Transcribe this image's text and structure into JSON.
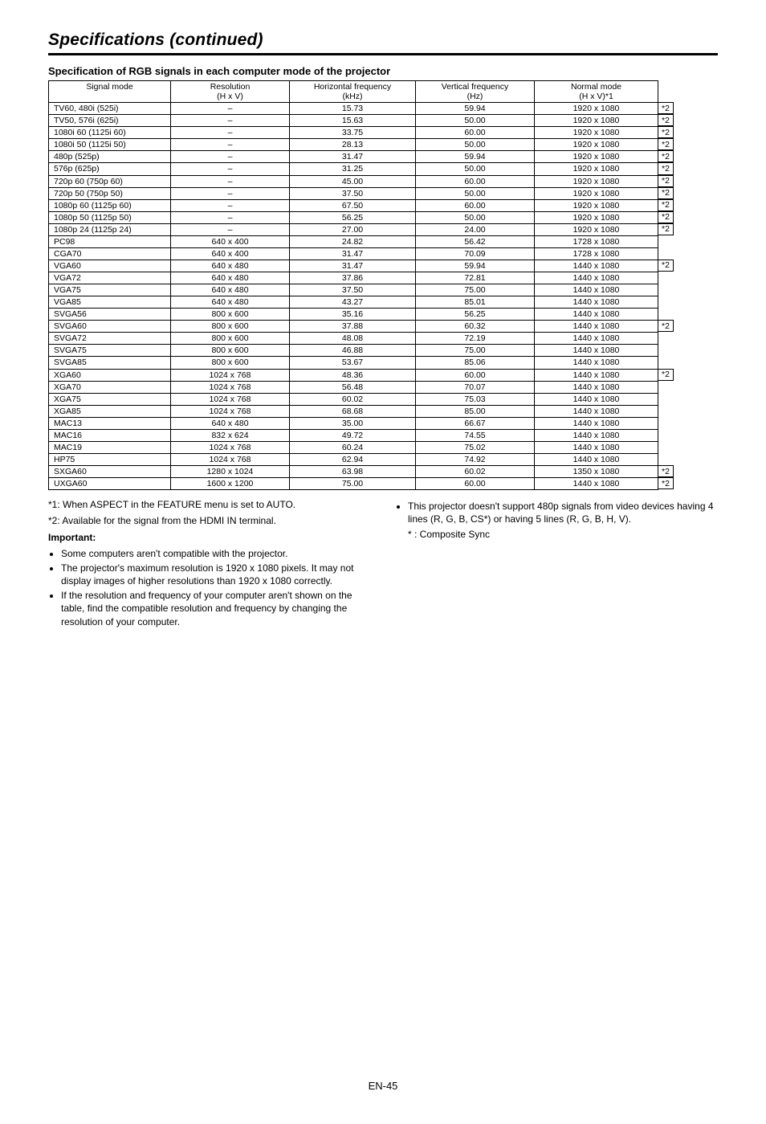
{
  "page": {
    "title": "Specifications (continued)",
    "section_heading": "Specification of RGB signals in each computer mode of the projector",
    "page_number": "EN-45"
  },
  "table": {
    "columns": [
      {
        "line1": "Signal mode",
        "line2": ""
      },
      {
        "line1": "Resolution",
        "line2": "(H x V)"
      },
      {
        "line1": "Horizontal frequency",
        "line2": "(kHz)"
      },
      {
        "line1": "Vertical frequency",
        "line2": "(Hz)"
      },
      {
        "line1": "Normal mode",
        "line2": "(H x V)*1"
      }
    ],
    "rows": [
      {
        "signal": "TV60, 480i (525i)",
        "res": "–",
        "hf": "15.73",
        "vf": "59.94",
        "nm": "1920 x 1080",
        "note": "*2"
      },
      {
        "signal": "TV50, 576i (625i)",
        "res": "–",
        "hf": "15.63",
        "vf": "50.00",
        "nm": "1920 x 1080",
        "note": "*2"
      },
      {
        "signal": "1080i 60 (1125i 60)",
        "res": "–",
        "hf": "33.75",
        "vf": "60.00",
        "nm": "1920 x 1080",
        "note": "*2"
      },
      {
        "signal": "1080i 50 (1125i 50)",
        "res": "–",
        "hf": "28.13",
        "vf": "50.00",
        "nm": "1920 x 1080",
        "note": "*2"
      },
      {
        "signal": "480p (525p)",
        "res": "–",
        "hf": "31.47",
        "vf": "59.94",
        "nm": "1920 x 1080",
        "note": "*2"
      },
      {
        "signal": "576p (625p)",
        "res": "–",
        "hf": "31.25",
        "vf": "50.00",
        "nm": "1920 x 1080",
        "note": "*2"
      },
      {
        "signal": "720p 60 (750p 60)",
        "res": "–",
        "hf": "45.00",
        "vf": "60.00",
        "nm": "1920 x 1080",
        "note": "*2"
      },
      {
        "signal": "720p 50 (750p 50)",
        "res": "–",
        "hf": "37.50",
        "vf": "50.00",
        "nm": "1920 x 1080",
        "note": "*2"
      },
      {
        "signal": "1080p 60 (1125p 60)",
        "res": "–",
        "hf": "67.50",
        "vf": "60.00",
        "nm": "1920 x 1080",
        "note": "*2"
      },
      {
        "signal": "1080p 50 (1125p 50)",
        "res": "–",
        "hf": "56.25",
        "vf": "50.00",
        "nm": "1920 x 1080",
        "note": "*2"
      },
      {
        "signal": "1080p 24 (1125p 24)",
        "res": "–",
        "hf": "27.00",
        "vf": "24.00",
        "nm": "1920 x 1080",
        "note": "*2"
      },
      {
        "signal": "PC98",
        "res": "640 x 400",
        "hf": "24.82",
        "vf": "56.42",
        "nm": "1728 x 1080",
        "note": ""
      },
      {
        "signal": "CGA70",
        "res": "640 x 400",
        "hf": "31.47",
        "vf": "70.09",
        "nm": "1728 x 1080",
        "note": ""
      },
      {
        "signal": "VGA60",
        "res": "640 x 480",
        "hf": "31.47",
        "vf": "59.94",
        "nm": "1440 x 1080",
        "note": "*2"
      },
      {
        "signal": "VGA72",
        "res": "640 x 480",
        "hf": "37.86",
        "vf": "72.81",
        "nm": "1440 x 1080",
        "note": ""
      },
      {
        "signal": "VGA75",
        "res": "640 x 480",
        "hf": "37.50",
        "vf": "75.00",
        "nm": "1440 x 1080",
        "note": ""
      },
      {
        "signal": "VGA85",
        "res": "640 x 480",
        "hf": "43.27",
        "vf": "85.01",
        "nm": "1440 x 1080",
        "note": ""
      },
      {
        "signal": "SVGA56",
        "res": "800 x 600",
        "hf": "35.16",
        "vf": "56.25",
        "nm": "1440 x 1080",
        "note": ""
      },
      {
        "signal": "SVGA60",
        "res": "800 x 600",
        "hf": "37.88",
        "vf": "60.32",
        "nm": "1440 x 1080",
        "note": "*2"
      },
      {
        "signal": "SVGA72",
        "res": "800 x 600",
        "hf": "48.08",
        "vf": "72.19",
        "nm": "1440 x 1080",
        "note": ""
      },
      {
        "signal": "SVGA75",
        "res": "800 x 600",
        "hf": "46.88",
        "vf": "75.00",
        "nm": "1440 x 1080",
        "note": ""
      },
      {
        "signal": "SVGA85",
        "res": "800 x 600",
        "hf": "53.67",
        "vf": "85.06",
        "nm": "1440 x 1080",
        "note": ""
      },
      {
        "signal": "XGA60",
        "res": "1024 x 768",
        "hf": "48.36",
        "vf": "60.00",
        "nm": "1440 x 1080",
        "note": "*2"
      },
      {
        "signal": "XGA70",
        "res": "1024 x 768",
        "hf": "56.48",
        "vf": "70.07",
        "nm": "1440 x 1080",
        "note": ""
      },
      {
        "signal": "XGA75",
        "res": "1024 x 768",
        "hf": "60.02",
        "vf": "75.03",
        "nm": "1440 x 1080",
        "note": ""
      },
      {
        "signal": "XGA85",
        "res": "1024 x 768",
        "hf": "68.68",
        "vf": "85.00",
        "nm": "1440 x 1080",
        "note": ""
      },
      {
        "signal": "MAC13",
        "res": "640 x 480",
        "hf": "35.00",
        "vf": "66.67",
        "nm": "1440 x 1080",
        "note": ""
      },
      {
        "signal": "MAC16",
        "res": "832 x 624",
        "hf": "49.72",
        "vf": "74.55",
        "nm": "1440 x 1080",
        "note": ""
      },
      {
        "signal": "MAC19",
        "res": "1024 x 768",
        "hf": "60.24",
        "vf": "75.02",
        "nm": "1440 x 1080",
        "note": ""
      },
      {
        "signal": "HP75",
        "res": "1024 x 768",
        "hf": "62.94",
        "vf": "74.92",
        "nm": "1440 x 1080",
        "note": ""
      },
      {
        "signal": "SXGA60",
        "res": "1280 x 1024",
        "hf": "63.98",
        "vf": "60.02",
        "nm": "1350 x 1080",
        "note": "*2"
      },
      {
        "signal": "UXGA60",
        "res": "1600 x 1200",
        "hf": "75.00",
        "vf": "60.00",
        "nm": "1440 x 1080",
        "note": "*2"
      }
    ]
  },
  "footnotes": {
    "f1": "*1: When ASPECT in the FEATURE menu is set to AUTO.",
    "f2": "*2: Available for the signal from the HDMI IN terminal.",
    "important_label": "Important:",
    "bullets_left": [
      "Some computers aren't compatible with the projector.",
      "The projector's maximum resolution is 1920 x 1080 pixels. It may not display images of higher resolutions than 1920 x 1080 correctly.",
      "If the resolution and frequency of your computer aren't shown on the table, find the compatible resolution and frequency by changing the resolution of your computer."
    ],
    "bullets_right": [
      "This projector doesn't support 480p signals from video devices having 4 lines (R, G, B, CS*) or having 5 lines (R, G, B, H, V)."
    ],
    "composite_label": "* :    Composite Sync"
  }
}
